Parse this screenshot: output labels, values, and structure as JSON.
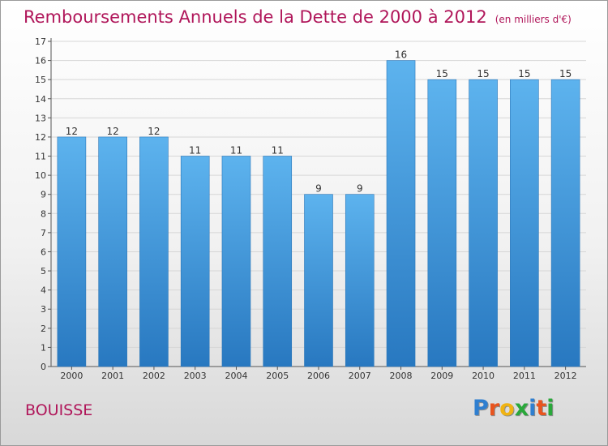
{
  "header": {
    "title": "Remboursements Annuels de la Dette de 2000 à 2012",
    "unit": "(en milliers d'€)"
  },
  "footer": {
    "commune": "BOUISSE",
    "logo_letters": [
      "P",
      "r",
      "o",
      "x",
      "i",
      "t",
      "i"
    ],
    "logo_colors": [
      "#2f7fd0",
      "#e8541e",
      "#f0b312",
      "#29a83a",
      "#2f7fd0",
      "#e8541e",
      "#29a83a"
    ]
  },
  "chart_data": {
    "type": "bar",
    "title": "Remboursements Annuels de la Dette de 2000 à 2012",
    "subtitle": "(en milliers d'€)",
    "categories": [
      "2000",
      "2001",
      "2002",
      "2003",
      "2004",
      "2005",
      "2006",
      "2007",
      "2008",
      "2009",
      "2010",
      "2011",
      "2012"
    ],
    "values": [
      12,
      12,
      12,
      11,
      11,
      11,
      9,
      9,
      16,
      15,
      15,
      15,
      15
    ],
    "data_labels": [
      "12",
      "12",
      "12",
      "11",
      "11",
      "11",
      "9",
      "9",
      "16",
      "15",
      "15",
      "15",
      "15"
    ],
    "y_ticks": [
      "0",
      "1",
      "2",
      "3",
      "4",
      "5",
      "6",
      "7",
      "8",
      "9",
      "10",
      "11",
      "12",
      "13",
      "14",
      "15",
      "16",
      "17"
    ],
    "ylim": [
      0,
      17
    ],
    "xlabel": "",
    "ylabel": "",
    "grid": "horizontal",
    "bar_color": "#4a9fe0",
    "bar_color_light": "#5db3ee",
    "bar_color_dark": "#2878c0"
  }
}
